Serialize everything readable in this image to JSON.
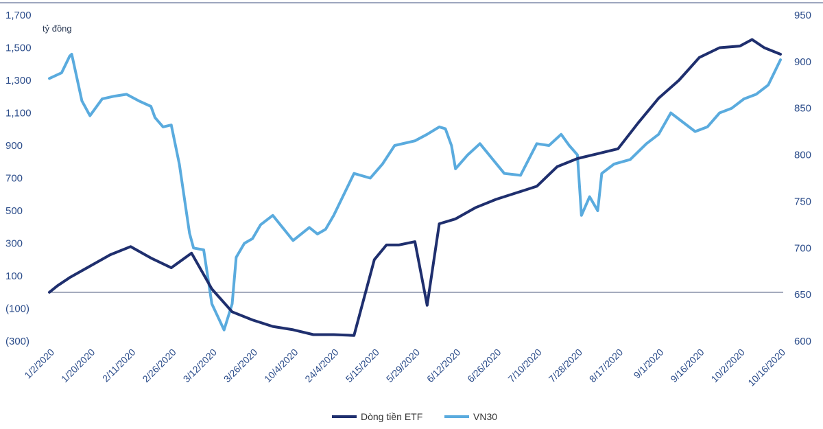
{
  "chart_data": {
    "type": "line",
    "title": "",
    "y_left_unit": "tỷ đồng",
    "y_left": {
      "min": -300,
      "max": 1700,
      "ticks": [
        "1,700",
        "1,500",
        "1,300",
        "1,100",
        "900",
        "700",
        "500",
        "300",
        "100",
        "(100)",
        "(300)"
      ]
    },
    "y_right": {
      "min": 600,
      "max": 950,
      "ticks": [
        "950",
        "900",
        "850",
        "800",
        "750",
        "700",
        "650",
        "600"
      ]
    },
    "x_labels": [
      "1/2/2020",
      "1/20/2020",
      "2/11/2020",
      "2/26/2020",
      "3/12/2020",
      "3/26/2020",
      "10/4/2020",
      "24/4/2020",
      "5/15/2020",
      "5/29/2020",
      "6/12/2020",
      "6/26/2020",
      "7/10/2020",
      "7/28/2020",
      "8/17/2020",
      "9/1/2020",
      "9/16/2020",
      "10/2/2020",
      "10/16/2020"
    ],
    "series": [
      {
        "name": "Dòng tiền ETF",
        "axis": "left",
        "color": "#1f2f6e",
        "t": [
          0,
          0.2,
          0.5,
          1,
          1.5,
          2,
          2.5,
          3,
          3.5,
          4,
          4.5,
          5,
          5.5,
          6,
          6.5,
          7,
          7.5,
          8,
          8.3,
          8.6,
          9,
          9.3,
          9.6,
          10,
          10.5,
          11,
          11.5,
          12,
          12.5,
          13,
          13.5,
          14,
          14.5,
          15,
          15.5,
          16,
          16.5,
          17,
          17.3,
          17.6,
          18
        ],
        "values": [
          0,
          40,
          90,
          160,
          230,
          280,
          210,
          150,
          240,
          20,
          -120,
          -170,
          -210,
          -230,
          -260,
          -260,
          -265,
          200,
          290,
          290,
          310,
          -80,
          420,
          450,
          520,
          570,
          610,
          650,
          770,
          820,
          850,
          880,
          1040,
          1190,
          1300,
          1440,
          1500,
          1510,
          1550,
          1500,
          1460
        ]
      },
      {
        "name": "VN30",
        "axis": "right",
        "color": "#5aabde",
        "t": [
          0,
          0.3,
          0.5,
          0.55,
          0.8,
          1,
          1.3,
          1.6,
          1.9,
          2.2,
          2.5,
          2.6,
          2.8,
          3,
          3.2,
          3.45,
          3.55,
          3.8,
          4,
          4.3,
          4.5,
          4.6,
          4.8,
          5,
          5.2,
          5.5,
          6,
          6.4,
          6.6,
          6.8,
          7,
          7.5,
          7.9,
          8.2,
          8.5,
          9,
          9.3,
          9.6,
          9.75,
          9.9,
          10,
          10.3,
          10.6,
          10.9,
          11.2,
          11.6,
          11.8,
          12,
          12.3,
          12.6,
          12.8,
          13,
          13.1,
          13.3,
          13.5,
          13.6,
          13.9,
          14.3,
          14.7,
          15,
          15.3,
          15.6,
          15.9,
          16.2,
          16.5,
          16.8,
          17.1,
          17.4,
          17.7,
          18
        ],
        "values": [
          882,
          888,
          906,
          908,
          858,
          842,
          860,
          863,
          865,
          858,
          852,
          840,
          830,
          832,
          790,
          716,
          700,
          698,
          640,
          612,
          640,
          690,
          705,
          710,
          725,
          735,
          708,
          722,
          715,
          720,
          735,
          780,
          775,
          790,
          810,
          815,
          822,
          830,
          828,
          810,
          785,
          800,
          812,
          796,
          780,
          778,
          795,
          812,
          810,
          822,
          810,
          800,
          735,
          755,
          740,
          780,
          790,
          795,
          812,
          822,
          845,
          835,
          825,
          830,
          845,
          850,
          860,
          865,
          875,
          902
        ]
      }
    ]
  },
  "legend": [
    {
      "label": "Dòng tiền ETF",
      "color": "#1f2f6e"
    },
    {
      "label": "VN30",
      "color": "#5aabde"
    }
  ]
}
